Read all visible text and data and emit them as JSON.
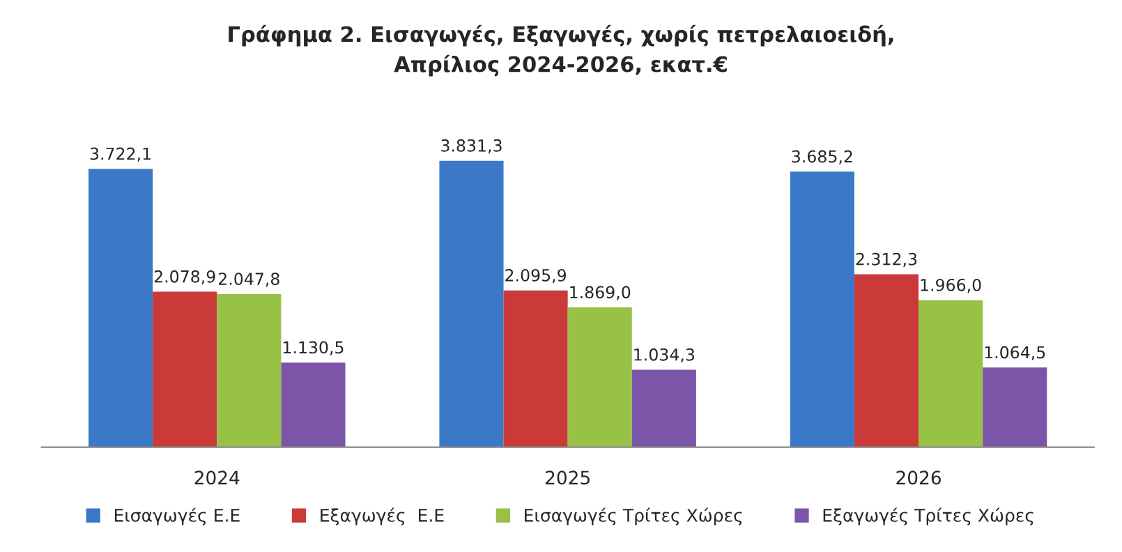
{
  "chart_data": {
    "type": "bar",
    "title": "Γράφημα 2. Εισαγωγές, Εξαγωγές, χωρίς πετρελαιοειδή,\nΑπρίλιος 2024-2026, εκατ.€",
    "categories": [
      "2024",
      "2025",
      "2026"
    ],
    "series": [
      {
        "name": "Εισαγωγές Ε.Ε",
        "color": "#3b78c8",
        "values": [
          3722.1,
          3831.3,
          3685.2
        ],
        "value_labels": [
          "3.722,1",
          "3.831,3",
          "3.685,2"
        ]
      },
      {
        "name": "Εξαγωγές  Ε.Ε",
        "color": "#c93a38",
        "values": [
          2078.9,
          2095.9,
          2312.3
        ],
        "value_labels": [
          "2.078,9",
          "2.095,9",
          "2.312,3"
        ]
      },
      {
        "name": "Εισαγωγές Τρίτες Χώρες",
        "color": "#98c246",
        "values": [
          2047.8,
          1869.0,
          1966.0
        ],
        "value_labels": [
          "2.047,8",
          "1.869,0",
          "1.966,0"
        ]
      },
      {
        "name": "Εξαγωγές Τρίτες Χώρες",
        "color": "#7b55a8",
        "values": [
          1130.5,
          1034.3,
          1064.5
        ],
        "value_labels": [
          "1.130,5",
          "1.034,3",
          "1.064,5"
        ]
      }
    ],
    "legend": "bottom",
    "grid": false
  }
}
